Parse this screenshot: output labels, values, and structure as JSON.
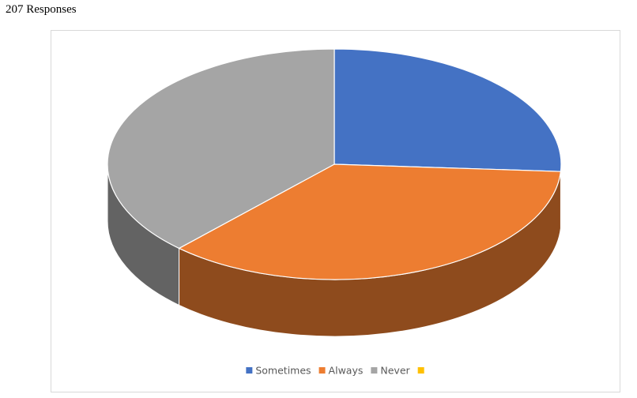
{
  "chart_data": {
    "type": "pie",
    "title": "207 Responses",
    "categories": [
      "Sometimes",
      "Always",
      "Never",
      null
    ],
    "values": [
      26,
      36,
      38,
      0
    ],
    "colors": [
      "#4472c4",
      "#ed7d31",
      "#a5a5a5",
      "#ffc000"
    ],
    "legend": "bottom"
  }
}
